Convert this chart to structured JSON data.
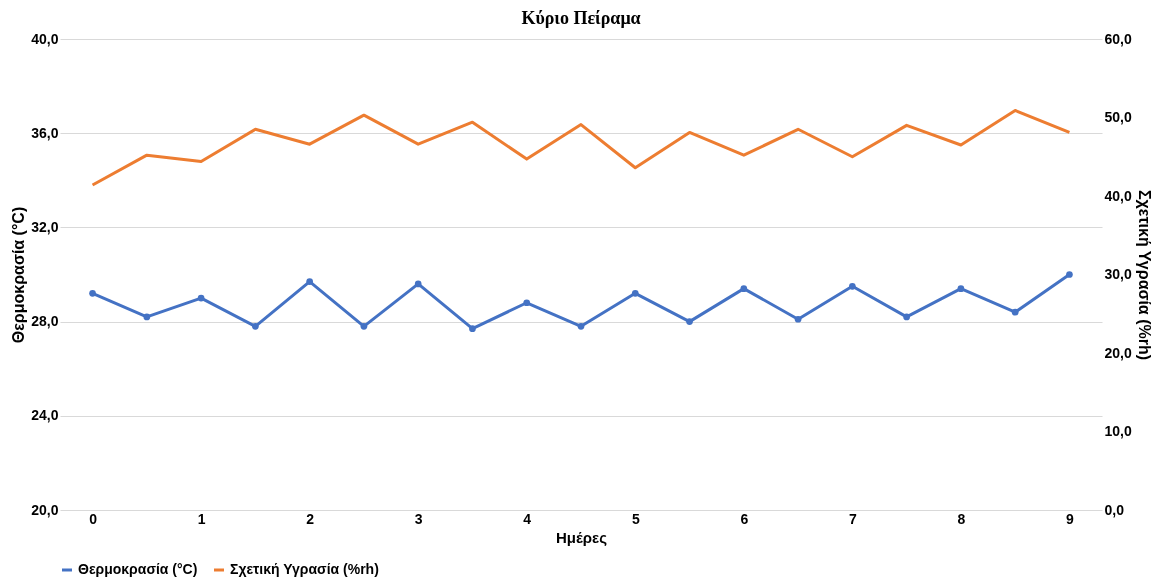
{
  "chart_data": {
    "type": "line",
    "title": "Κύριο Πείραμα",
    "xlabel": "Ημέρες",
    "ylabel": "Θερμοκρασία (°C)",
    "y2label": "Σχετική Υγρασία (%rh)",
    "x": [
      0,
      0.5,
      1,
      1.5,
      2,
      2.5,
      3,
      3.5,
      4,
      4.5,
      5,
      5.5,
      6,
      6.5,
      7,
      7.5,
      8,
      8.5,
      9
    ],
    "series": [
      {
        "name": "Θερμοκρασία (°C)",
        "color": "#4472c4",
        "marker": "circle",
        "values": [
          29.2,
          28.2,
          29.0,
          27.8,
          29.7,
          27.8,
          29.6,
          27.7,
          28.8,
          27.8,
          29.2,
          28.0,
          29.4,
          28.1,
          29.5,
          28.2,
          29.4,
          28.4,
          30.0
        ]
      },
      {
        "name": "Σχετική Υγρασία (%rh)",
        "color": "#ed7d31",
        "marker": "none",
        "axis": "y2",
        "values": [
          41.4,
          45.2,
          44.4,
          48.5,
          46.6,
          50.3,
          46.6,
          49.4,
          44.7,
          49.1,
          43.6,
          48.1,
          45.2,
          48.5,
          45.0,
          49.0,
          46.5,
          50.9,
          48.1
        ]
      }
    ],
    "xlim": [
      -0.3,
      9.3
    ],
    "xticks": [
      0,
      1,
      2,
      3,
      4,
      5,
      6,
      7,
      8,
      9
    ],
    "ylim": [
      20,
      40
    ],
    "yticks": [
      {
        "value": 20,
        "label": "20,0"
      },
      {
        "value": 24,
        "label": "24,0"
      },
      {
        "value": 28,
        "label": "28,0"
      },
      {
        "value": 32,
        "label": "32,0"
      },
      {
        "value": 36,
        "label": "36,0"
      },
      {
        "value": 40,
        "label": "40,0"
      }
    ],
    "y2lim": [
      0,
      60
    ],
    "y2ticks": [
      {
        "value": 0,
        "label": "0,0"
      },
      {
        "value": 10,
        "label": "10,0"
      },
      {
        "value": 20,
        "label": "20,0"
      },
      {
        "value": 30,
        "label": "30,0"
      },
      {
        "value": 40,
        "label": "40,0"
      },
      {
        "value": 50,
        "label": "50,0"
      },
      {
        "value": 60,
        "label": "60,0"
      }
    ],
    "grid": "y",
    "legend": "bottom",
    "line_style": "solid"
  }
}
